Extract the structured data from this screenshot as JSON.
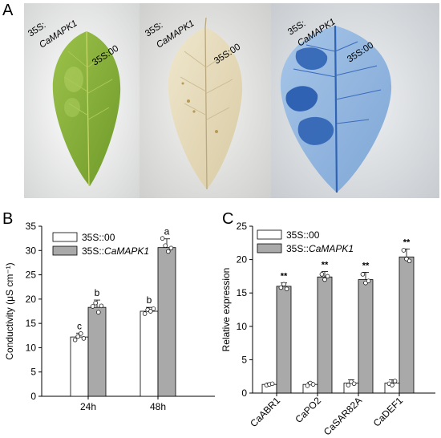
{
  "panels": {
    "a": {
      "letter": "A",
      "leaves": [
        {
          "label_top": "35S:",
          "label_gene": "CaMAPK1",
          "label_control": "35S:00"
        },
        {
          "label_top": "35S:",
          "label_gene": "CaMAPK1",
          "label_control": "35S:00"
        },
        {
          "label_top": "35S:",
          "label_gene": "CaMAPK1",
          "label_control": "35S:00"
        }
      ]
    },
    "b": {
      "letter": "B"
    },
    "c": {
      "letter": "C"
    }
  },
  "colors": {
    "control": "#ffffff",
    "transgenic": "#a9a9a9",
    "leaf_green": "#8fb83a",
    "leaf_bleached": "#e7dcc0",
    "leaf_blue": "#8db3dd",
    "stain_blue": "#2f63b4"
  },
  "chart_data": [
    {
      "type": "bar",
      "title": "",
      "xlabel": "",
      "ylabel": "Conductivity (μS cm⁻¹)",
      "ylim": [
        0,
        35
      ],
      "yticks": [
        0,
        5,
        10,
        15,
        20,
        25,
        30,
        35
      ],
      "categories": [
        "24h",
        "48h"
      ],
      "legend_position": "top-left",
      "series": [
        {
          "name": "35S::00",
          "values": [
            12.2,
            17.5
          ],
          "errors": [
            0.8,
            0.8
          ],
          "letters": [
            "c",
            "b"
          ],
          "points": [
            [
              11.6,
              12.3,
              12.9,
              11.9
            ],
            [
              17.0,
              17.8,
              17.5,
              18.0
            ]
          ]
        },
        {
          "name_prefix": "35S::",
          "name_gene": "CaMAPK1",
          "values": [
            18.3,
            30.6
          ],
          "errors": [
            1.5,
            1.8
          ],
          "letters": [
            "b",
            "a"
          ],
          "points": [
            [
              18.5,
              19.2,
              17.3,
              18.6
            ],
            [
              32.5,
              31.0,
              29.8,
              30.5
            ]
          ]
        }
      ]
    },
    {
      "type": "bar",
      "title": "",
      "xlabel": "",
      "ylabel": "Relative expression",
      "ylim": [
        0,
        25
      ],
      "yticks": [
        0,
        5,
        10,
        15,
        20,
        25
      ],
      "categories": [
        "CaABR1",
        "CaPO2",
        "CaSAR82A",
        "CaDEF1"
      ],
      "legend_position": "top-left",
      "series": [
        {
          "name": "35S::00",
          "values": [
            1.3,
            1.3,
            1.5,
            1.5
          ],
          "errors": [
            0.2,
            0.3,
            0.5,
            0.5
          ],
          "points": [
            [
              1.2,
              1.3,
              1.4
            ],
            [
              1.1,
              1.5,
              1.3
            ],
            [
              1.2,
              1.7,
              1.4
            ],
            [
              1.4,
              1.2,
              1.8
            ]
          ]
        },
        {
          "name_prefix": "35S::",
          "name_gene": "CaMAPK1",
          "values": [
            16.0,
            17.4,
            17.0,
            20.4
          ],
          "errors": [
            0.5,
            0.8,
            1.1,
            1.2
          ],
          "significance": [
            "**",
            "**",
            "**",
            "**"
          ],
          "points": [
            [
              15.8,
              16.3,
              15.6
            ],
            [
              17.8,
              17.0,
              17.5
            ],
            [
              17.8,
              16.5,
              16.8
            ],
            [
              21.4,
              20.1,
              19.8
            ]
          ]
        }
      ]
    }
  ]
}
